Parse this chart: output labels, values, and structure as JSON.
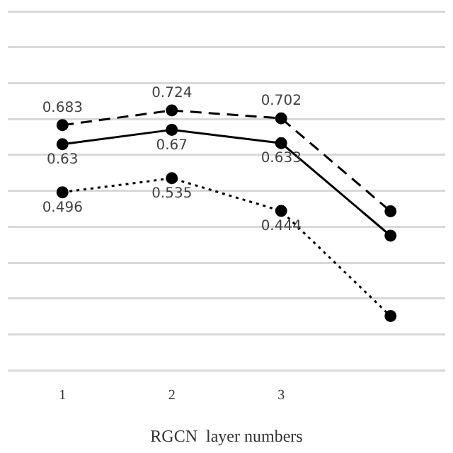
{
  "chart_data": {
    "type": "line",
    "xlabel": "RGCN  layer numbers",
    "categories": [
      "1",
      "2",
      "3",
      null
    ],
    "series": [
      {
        "color": "#000000",
        "line_style": "dashed",
        "values": [
          0.683,
          0.724,
          0.702,
          0.443
        ],
        "value_labels": [
          "0.683",
          "0.724",
          "0.702",
          null
        ]
      },
      {
        "color": "#000000",
        "line_style": "solid",
        "values": [
          0.63,
          0.67,
          0.633,
          0.375
        ],
        "value_labels": [
          "0.63",
          "0.67",
          "0.633",
          null
        ]
      },
      {
        "color": "#000000",
        "line_style": "dotted",
        "values": [
          0.496,
          0.535,
          0.444,
          0.151
        ],
        "value_labels": [
          "0.496",
          "0.535",
          "0.444",
          null
        ]
      }
    ],
    "ylim": [
      0,
      1
    ],
    "yticks": [
      {
        "value": 0,
        "label": null
      },
      {
        "value": 0.1,
        "label": null
      },
      {
        "value": 0.2,
        "label": null
      },
      {
        "value": 0.3,
        "label": null
      },
      {
        "value": 0.4,
        "label": null
      },
      {
        "value": 0.5,
        "label": null
      },
      {
        "value": 0.6,
        "label": null
      },
      {
        "value": 0.7,
        "label": null
      },
      {
        "value": 0.8,
        "label": null
      },
      {
        "value": 0.9,
        "label": null
      },
      {
        "value": 1,
        "label": null
      }
    ],
    "grid": "y",
    "marker": "circle",
    "legend": false,
    "tick_labels": "x"
  }
}
